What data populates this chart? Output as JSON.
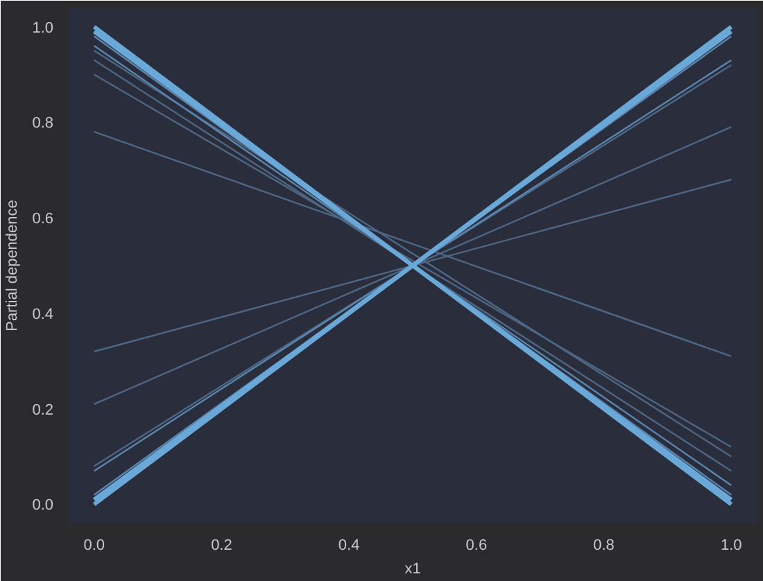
{
  "chart_data": {
    "type": "line",
    "xlabel": "x1",
    "ylabel": "Partial dependence",
    "x": [
      0,
      1
    ],
    "xlim": [
      -0.04,
      1.04
    ],
    "ylim": [
      -0.04,
      1.04
    ],
    "xticks": [
      {
        "value": 0,
        "label": "0.0"
      },
      {
        "value": 0.2,
        "label": "0.2"
      },
      {
        "value": 0.4,
        "label": "0.4"
      },
      {
        "value": 0.6,
        "label": "0.6"
      },
      {
        "value": 0.8,
        "label": "0.8"
      },
      {
        "value": 1,
        "label": "1.0"
      }
    ],
    "yticks": [
      {
        "value": 0,
        "label": "0.0"
      },
      {
        "value": 0.2,
        "label": "0.2"
      },
      {
        "value": 0.4,
        "label": "0.4"
      },
      {
        "value": 0.6,
        "label": "0.6"
      },
      {
        "value": 0.8,
        "label": "0.8"
      },
      {
        "value": 1,
        "label": "1.0"
      }
    ],
    "grid": false,
    "marker": "none",
    "line_style": "solid",
    "series": [
      {
        "color": "#4d6784",
        "values": [
          0.78,
          0.31
        ]
      },
      {
        "color": "#4d6784",
        "values": [
          0.9,
          0.12
        ]
      },
      {
        "color": "#4d6784",
        "values": [
          0.93,
          0.07
        ]
      },
      {
        "color": "#4d6784",
        "values": [
          0.95,
          0.1
        ]
      },
      {
        "color": "#5a86b0",
        "values": [
          0.96,
          0.04
        ]
      },
      {
        "color": "#5a86b0",
        "values": [
          0.98,
          0.02
        ]
      },
      {
        "color": "#6aa8d8",
        "values": [
          0.99,
          0.01
        ]
      },
      {
        "color": "#6aa8d8",
        "values": [
          1.0,
          0.0
        ]
      },
      {
        "color": "#4d6784",
        "values": [
          0.32,
          0.68
        ]
      },
      {
        "color": "#4d6784",
        "values": [
          0.21,
          0.79
        ]
      },
      {
        "color": "#4d6784",
        "values": [
          0.08,
          0.92
        ]
      },
      {
        "color": "#5a86b0",
        "values": [
          0.07,
          0.93
        ]
      },
      {
        "color": "#5a86b0",
        "values": [
          0.02,
          0.98
        ]
      },
      {
        "color": "#6aa8d8",
        "values": [
          0.01,
          0.99
        ]
      },
      {
        "color": "#6aa8d8",
        "values": [
          0.0,
          1.0
        ]
      }
    ]
  }
}
